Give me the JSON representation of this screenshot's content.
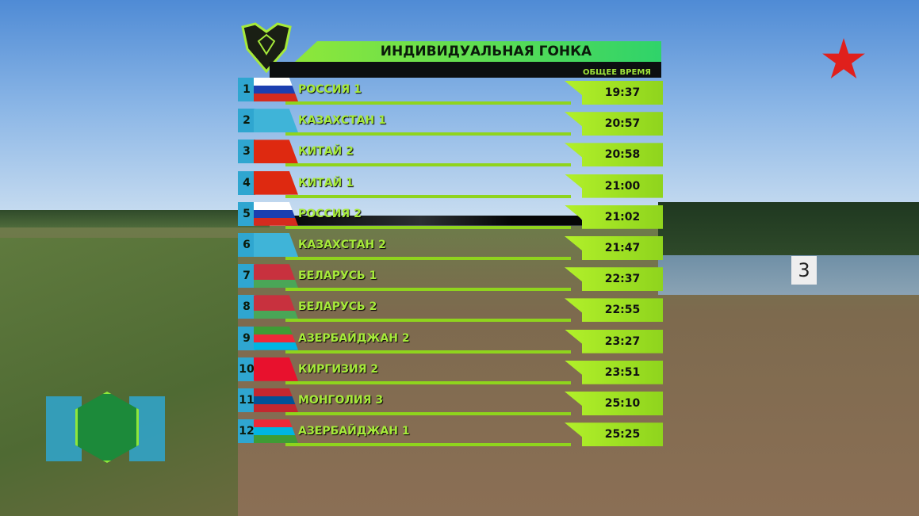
{
  "title": "ИНДИВИДУАЛЬНАЯ ГОНКА",
  "column_header": "ОБЩЕЕ ВРЕМЯ",
  "colors": {
    "accent_green": "#a6ea3a",
    "rank_blue": "#2fa6d0",
    "channel_star": "#e0201c"
  },
  "background_sign": "3",
  "rows": [
    {
      "rank": "1",
      "name": "РОССИЯ 1",
      "time": "19:37",
      "flag": [
        "#ffffff",
        "#1c3fb0",
        "#d52b1e"
      ]
    },
    {
      "rank": "2",
      "name": "КАЗАХСТАН 1",
      "time": "20:57",
      "flag": [
        "#3fb4d8",
        "#3fb4d8",
        "#3fb4d8"
      ]
    },
    {
      "rank": "3",
      "name": "КИТАЙ 2",
      "time": "20:58",
      "flag": [
        "#de2910",
        "#de2910",
        "#de2910"
      ]
    },
    {
      "rank": "4",
      "name": "КИТАЙ 1",
      "time": "21:00",
      "flag": [
        "#de2910",
        "#de2910",
        "#de2910"
      ]
    },
    {
      "rank": "5",
      "name": "РОССИЯ 2",
      "time": "21:02",
      "flag": [
        "#ffffff",
        "#1c3fb0",
        "#d52b1e"
      ]
    },
    {
      "rank": "6",
      "name": "КАЗАХСТАН 2",
      "time": "21:47",
      "flag": [
        "#3fb4d8",
        "#3fb4d8",
        "#3fb4d8"
      ]
    },
    {
      "rank": "7",
      "name": "БЕЛАРУСЬ 1",
      "time": "22:37",
      "flag": [
        "#c8313e",
        "#c8313e",
        "#4aa657"
      ]
    },
    {
      "rank": "8",
      "name": "БЕЛАРУСЬ 2",
      "time": "22:55",
      "flag": [
        "#c8313e",
        "#c8313e",
        "#4aa657"
      ]
    },
    {
      "rank": "9",
      "name": "АЗЕРБАЙДЖАН 2",
      "time": "23:27",
      "flag": [
        "#3f9c35",
        "#ed2939",
        "#00b5e2"
      ]
    },
    {
      "rank": "10",
      "name": "КИРГИЗИЯ 2",
      "time": "23:51",
      "flag": [
        "#e8112d",
        "#e8112d",
        "#e8112d"
      ]
    },
    {
      "rank": "11",
      "name": "МОНГОЛИЯ 3",
      "time": "25:10",
      "flag": [
        "#c4272f",
        "#015197",
        "#c4272f"
      ]
    },
    {
      "rank": "12",
      "name": "АЗЕРБАЙДЖАН 1",
      "time": "25:25",
      "flag": [
        "#ed2939",
        "#00b5e2",
        "#3f9c35"
      ]
    }
  ]
}
